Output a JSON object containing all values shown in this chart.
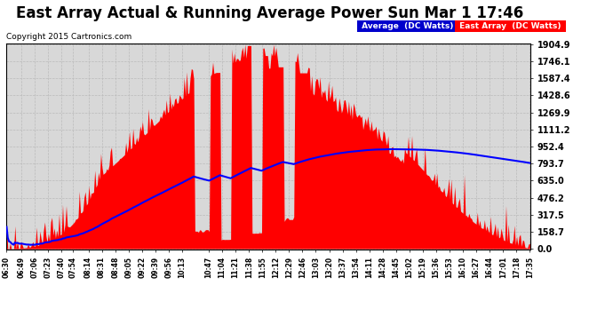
{
  "title": "East Array Actual & Running Average Power Sun Mar 1 17:46",
  "copyright": "Copyright 2015 Cartronics.com",
  "legend_avg": "Average  (DC Watts)",
  "legend_east": "East Array  (DC Watts)",
  "yticks": [
    0.0,
    158.7,
    317.5,
    476.2,
    635.0,
    793.7,
    952.4,
    1111.2,
    1269.9,
    1428.6,
    1587.4,
    1746.1,
    1904.9
  ],
  "ymax": 1904.9,
  "ymin": 0.0,
  "background_color": "#ffffff",
  "plot_bg_color": "#d8d8d8",
  "bar_color": "#ff0000",
  "avg_line_color": "#0000ff",
  "grid_color": "#bbbbbb",
  "title_fontsize": 12,
  "xtick_labels": [
    "06:30",
    "06:49",
    "07:06",
    "07:23",
    "07:40",
    "07:54",
    "08:14",
    "08:31",
    "08:48",
    "09:05",
    "09:22",
    "09:39",
    "09:56",
    "10:13",
    "10:47",
    "11:04",
    "11:21",
    "11:38",
    "11:55",
    "12:12",
    "12:29",
    "12:46",
    "13:03",
    "13:20",
    "13:37",
    "13:54",
    "14:11",
    "14:28",
    "14:45",
    "15:02",
    "15:19",
    "15:36",
    "15:53",
    "16:10",
    "16:27",
    "16:44",
    "17:01",
    "17:18",
    "17:35"
  ]
}
